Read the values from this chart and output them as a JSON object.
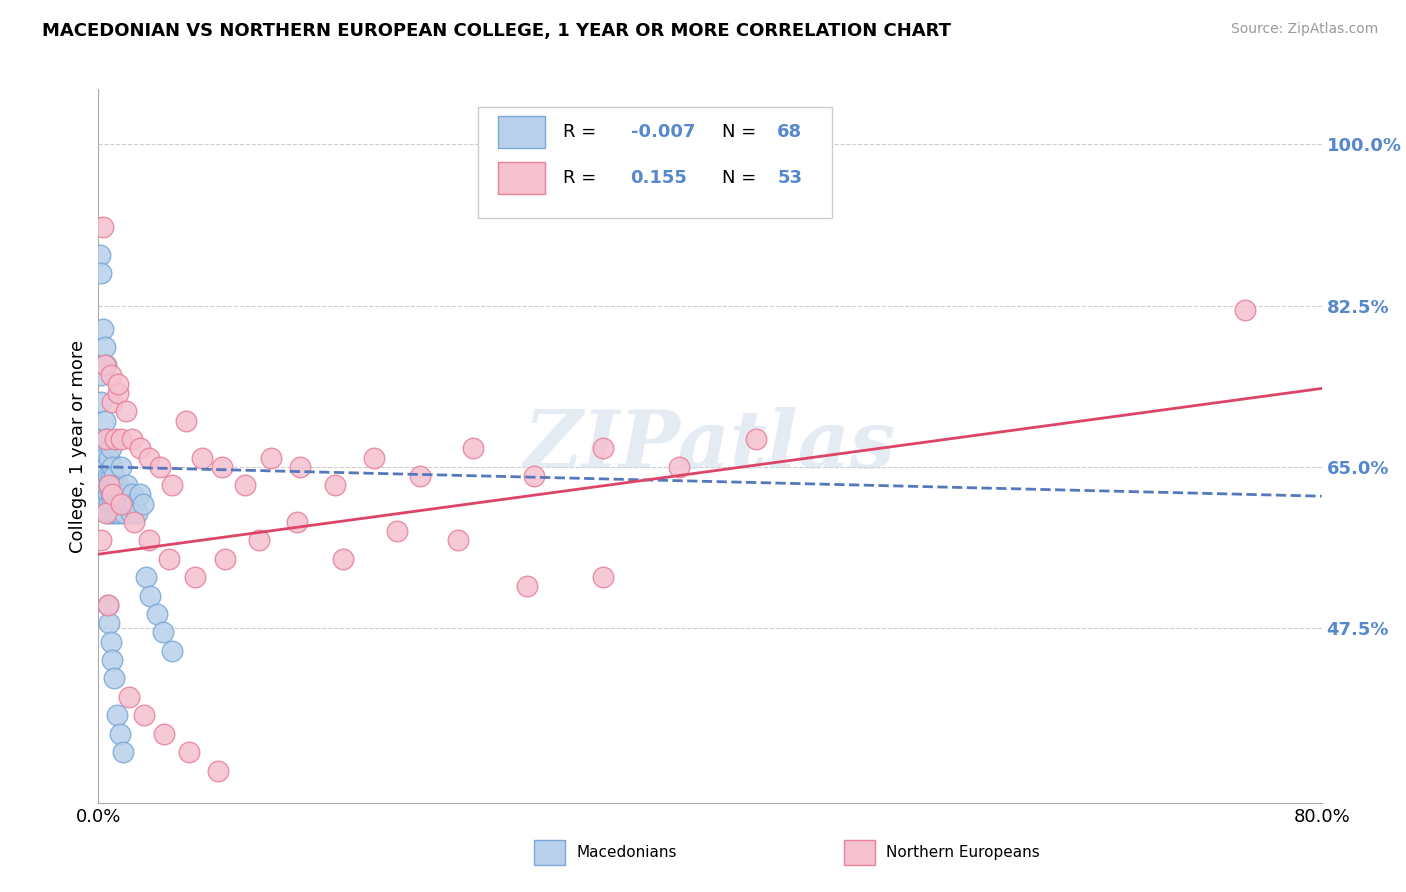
{
  "title": "MACEDONIAN VS NORTHERN EUROPEAN COLLEGE, 1 YEAR OR MORE CORRELATION CHART",
  "source": "Source: ZipAtlas.com",
  "ylabel": "College, 1 year or more",
  "xlim": [
    0.0,
    0.8
  ],
  "ylim": [
    0.285,
    1.06
  ],
  "yticks_right": [
    0.475,
    0.65,
    0.825,
    1.0
  ],
  "ytick_right_labels": [
    "47.5%",
    "65.0%",
    "82.5%",
    "100.0%"
  ],
  "xticks": [
    0.0,
    0.8
  ],
  "xtick_labels": [
    "0.0%",
    "80.0%"
  ],
  "blue_color": "#b8d0ea",
  "pink_color": "#f5c0d0",
  "blue_edge": "#7aa8d8",
  "pink_edge": "#e88098",
  "trend_blue_color": "#5577bb",
  "trend_pink_color": "#dd4466",
  "watermark": "ZIPatlas",
  "grid_color": "#cccccc",
  "background_color": "#ffffff",
  "right_axis_color": "#5588cc",
  "blue_x": [
    0.001,
    0.001,
    0.002,
    0.002,
    0.003,
    0.003,
    0.003,
    0.004,
    0.004,
    0.004,
    0.005,
    0.005,
    0.005,
    0.005,
    0.006,
    0.006,
    0.006,
    0.007,
    0.007,
    0.007,
    0.008,
    0.008,
    0.008,
    0.008,
    0.009,
    0.009,
    0.009,
    0.01,
    0.01,
    0.01,
    0.011,
    0.011,
    0.012,
    0.012,
    0.013,
    0.013,
    0.014,
    0.015,
    0.015,
    0.016,
    0.017,
    0.018,
    0.019,
    0.02,
    0.021,
    0.022,
    0.023,
    0.025,
    0.027,
    0.029,
    0.031,
    0.034,
    0.038,
    0.042,
    0.048,
    0.001,
    0.002,
    0.003,
    0.004,
    0.005,
    0.006,
    0.007,
    0.008,
    0.009,
    0.01,
    0.012,
    0.014,
    0.016
  ],
  "blue_y": [
    0.65,
    0.68,
    0.72,
    0.75,
    0.62,
    0.64,
    0.67,
    0.63,
    0.66,
    0.7,
    0.61,
    0.63,
    0.65,
    0.68,
    0.6,
    0.62,
    0.64,
    0.61,
    0.63,
    0.66,
    0.6,
    0.62,
    0.64,
    0.67,
    0.61,
    0.63,
    0.65,
    0.6,
    0.62,
    0.64,
    0.61,
    0.63,
    0.6,
    0.62,
    0.61,
    0.63,
    0.6,
    0.62,
    0.65,
    0.61,
    0.6,
    0.62,
    0.63,
    0.61,
    0.6,
    0.62,
    0.61,
    0.6,
    0.62,
    0.61,
    0.53,
    0.51,
    0.49,
    0.47,
    0.45,
    0.88,
    0.86,
    0.8,
    0.78,
    0.76,
    0.5,
    0.48,
    0.46,
    0.44,
    0.42,
    0.38,
    0.36,
    0.34
  ],
  "pink_x": [
    0.003,
    0.005,
    0.007,
    0.009,
    0.011,
    0.013,
    0.015,
    0.018,
    0.022,
    0.027,
    0.033,
    0.04,
    0.048,
    0.057,
    0.068,
    0.081,
    0.096,
    0.113,
    0.132,
    0.155,
    0.18,
    0.21,
    0.245,
    0.285,
    0.33,
    0.38,
    0.43,
    0.005,
    0.009,
    0.015,
    0.023,
    0.033,
    0.046,
    0.063,
    0.083,
    0.105,
    0.13,
    0.16,
    0.195,
    0.235,
    0.28,
    0.33,
    0.004,
    0.008,
    0.013,
    0.02,
    0.03,
    0.043,
    0.059,
    0.078,
    0.75,
    0.002,
    0.006
  ],
  "pink_y": [
    0.91,
    0.68,
    0.63,
    0.72,
    0.68,
    0.73,
    0.68,
    0.71,
    0.68,
    0.67,
    0.66,
    0.65,
    0.63,
    0.7,
    0.66,
    0.65,
    0.63,
    0.66,
    0.65,
    0.63,
    0.66,
    0.64,
    0.67,
    0.64,
    0.67,
    0.65,
    0.68,
    0.6,
    0.62,
    0.61,
    0.59,
    0.57,
    0.55,
    0.53,
    0.55,
    0.57,
    0.59,
    0.55,
    0.58,
    0.57,
    0.52,
    0.53,
    0.76,
    0.75,
    0.74,
    0.4,
    0.38,
    0.36,
    0.34,
    0.32,
    0.82,
    0.57,
    0.5
  ],
  "blue_trend_x": [
    0.0,
    0.8
  ],
  "blue_trend_y_start": 0.65,
  "blue_trend_y_end": 0.618,
  "pink_trend_x": [
    0.0,
    0.8
  ],
  "pink_trend_y_start": 0.555,
  "pink_trend_y_end": 0.735
}
